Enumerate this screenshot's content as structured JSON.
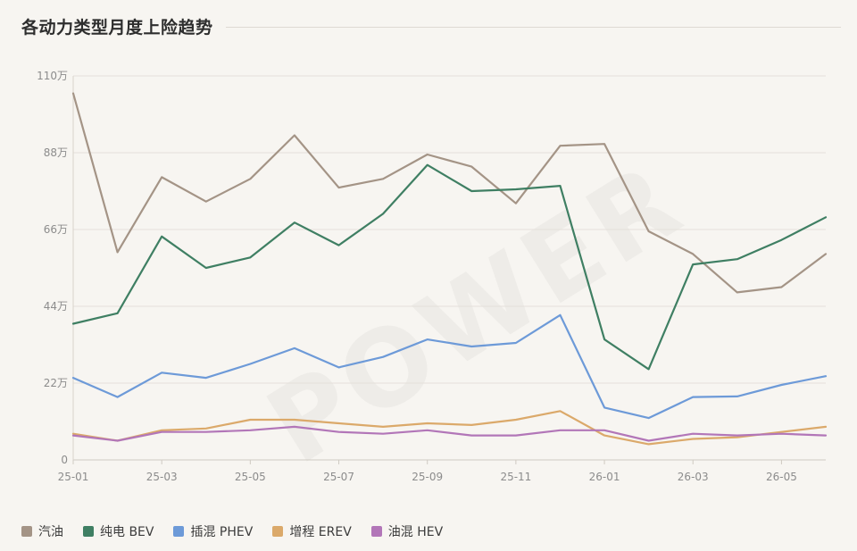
{
  "chart_data": {
    "type": "line",
    "title": "各动力类型月度上险趋势",
    "watermark": "POWER",
    "y_ticks": [
      "0",
      "22万",
      "44万",
      "66万",
      "88万",
      "110万"
    ],
    "ylim": [
      0,
      110
    ],
    "grid": true,
    "legend_position": "bottom-left",
    "x": [
      "25-01",
      "25-02",
      "25-03",
      "25-04",
      "25-05",
      "25-06",
      "25-07",
      "25-08",
      "25-09",
      "25-10",
      "25-11",
      "25-12",
      "26-01",
      "26-02",
      "26-03",
      "26-04",
      "26-05",
      "26-06"
    ],
    "x_tick_labels": [
      "25-01",
      "25-03",
      "25-05",
      "25-07",
      "25-09",
      "25-11",
      "26-01",
      "26-03",
      "26-05"
    ],
    "series": [
      {
        "name": "汽油",
        "color": "#a49486",
        "values": [
          105,
          59.5,
          81,
          74,
          80.5,
          93,
          78,
          80.5,
          87.5,
          84,
          73.5,
          90,
          90.5,
          65.5,
          59,
          48,
          49.5,
          59
        ]
      },
      {
        "name": "纯电 BEV",
        "color": "#3f7f63",
        "values": [
          39,
          42,
          64,
          55,
          58,
          68,
          61.5,
          70.5,
          84.5,
          77,
          77.5,
          78.5,
          34.5,
          26,
          56,
          57.5,
          63,
          69.5
        ]
      },
      {
        "name": "插混 PHEV",
        "color": "#6d9ad8",
        "values": [
          23.5,
          18,
          25,
          23.5,
          27.5,
          32,
          26.5,
          29.5,
          34.5,
          32.5,
          33.5,
          41.5,
          15,
          12,
          18,
          18.2,
          21.5,
          24
        ]
      },
      {
        "name": "增程 EREV",
        "color": "#dba96a",
        "values": [
          7.5,
          5.5,
          8.5,
          9,
          11.5,
          11.5,
          10.5,
          9.5,
          10.5,
          10,
          11.5,
          14,
          7,
          4.5,
          6,
          6.5,
          8,
          9.5
        ]
      },
      {
        "name": "油混 HEV",
        "color": "#b276b8",
        "values": [
          7,
          5.5,
          8,
          8,
          8.5,
          9.5,
          8,
          7.5,
          8.5,
          7,
          7,
          8.5,
          8.5,
          5.5,
          7.5,
          7,
          7.5,
          7
        ]
      }
    ]
  }
}
